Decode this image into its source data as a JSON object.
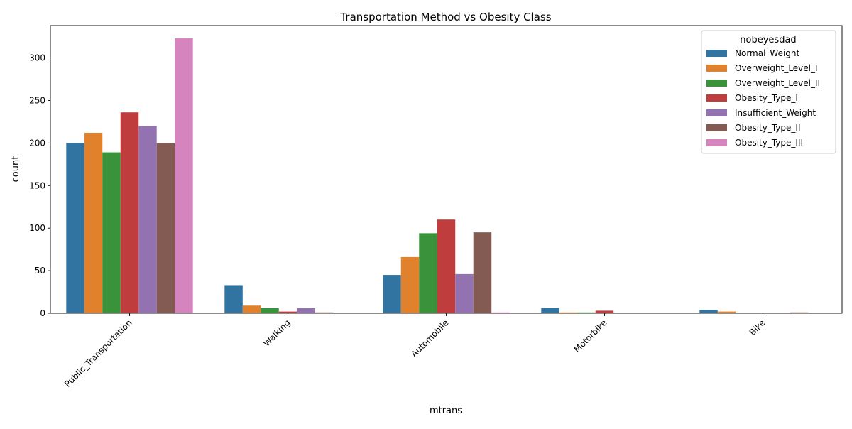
{
  "chart_data": {
    "type": "bar",
    "title": "Transportation Method vs Obesity Class",
    "xlabel": "mtrans",
    "ylabel": "count",
    "ylim": [
      0,
      338
    ],
    "yticks": [
      0,
      50,
      100,
      150,
      200,
      250,
      300
    ],
    "categories": [
      "Public_Transportation",
      "Walking",
      "Automobile",
      "Motorbike",
      "Bike"
    ],
    "legend": {
      "title": "nobeyesdad",
      "position": "top-right"
    },
    "series": [
      {
        "name": "Normal_Weight",
        "color": "#3274a1",
        "values": [
          200,
          33,
          45,
          6,
          4
        ]
      },
      {
        "name": "Overweight_Level_I",
        "color": "#e1812c",
        "values": [
          212,
          9,
          66,
          1,
          2
        ]
      },
      {
        "name": "Overweight_Level_II",
        "color": "#3a923a",
        "values": [
          189,
          6,
          94,
          1,
          0
        ]
      },
      {
        "name": "Obesity_Type_I",
        "color": "#c03d3e",
        "values": [
          236,
          2,
          110,
          3,
          0
        ]
      },
      {
        "name": "Insufficient_Weight",
        "color": "#9372b2",
        "values": [
          220,
          6,
          46,
          0,
          0
        ]
      },
      {
        "name": "Obesity_Type_II",
        "color": "#845b53",
        "values": [
          200,
          1,
          95,
          0,
          1
        ]
      },
      {
        "name": "Obesity_Type_III",
        "color": "#d684bd",
        "values": [
          323,
          0,
          1,
          0,
          0
        ]
      }
    ]
  }
}
